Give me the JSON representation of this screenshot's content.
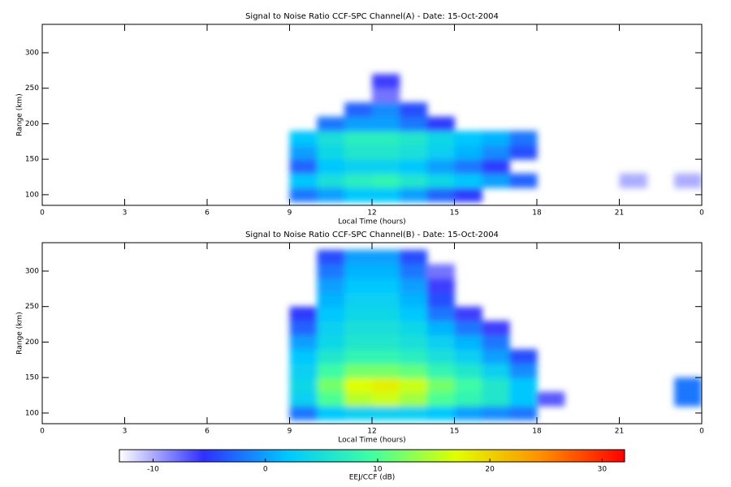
{
  "chart_data": [
    {
      "type": "heatmap",
      "title": "Signal to Noise Ratio CCF-SPC Channel(A) - Date: 15-Oct-2004",
      "xlabel": "Local Time (hours)",
      "ylabel": "Range (km)",
      "xlim": [
        0,
        24
      ],
      "xticks": [
        0,
        3,
        6,
        9,
        12,
        15,
        18,
        21,
        {
          "value": 24,
          "label": "0"
        }
      ],
      "ylim": [
        85,
        340
      ],
      "yticks": [
        100,
        150,
        200,
        250,
        300
      ],
      "x_edges": [
        0,
        1,
        2,
        3,
        4,
        5,
        6,
        7,
        8,
        9,
        10,
        11,
        12,
        13,
        14,
        15,
        16,
        17,
        18,
        19,
        20,
        21,
        22,
        23,
        24
      ],
      "y_edges": [
        90,
        110,
        130,
        150,
        170,
        190,
        210,
        230,
        250,
        270,
        290,
        310,
        330
      ],
      "z": [
        [
          null,
          null,
          null,
          null,
          null,
          null,
          null,
          null,
          null,
          -2,
          0,
          2,
          2,
          0,
          -3,
          -5,
          null,
          null,
          null,
          null,
          null,
          null,
          null,
          null
        ],
        [
          null,
          null,
          null,
          null,
          null,
          null,
          null,
          null,
          null,
          2,
          5,
          7,
          8,
          6,
          4,
          2,
          0,
          -3,
          null,
          null,
          null,
          -10,
          null,
          -10
        ],
        [
          null,
          null,
          null,
          null,
          null,
          null,
          null,
          null,
          null,
          -3,
          2,
          3,
          3,
          2,
          0,
          -2,
          -5,
          null,
          null,
          null,
          null,
          null,
          null,
          null
        ],
        [
          null,
          null,
          null,
          null,
          null,
          null,
          null,
          null,
          null,
          0,
          4,
          6,
          6,
          5,
          3,
          1,
          -1,
          -4,
          null,
          null,
          null,
          null,
          null,
          null
        ],
        [
          null,
          null,
          null,
          null,
          null,
          null,
          null,
          null,
          null,
          2,
          5,
          7,
          7,
          6,
          4,
          2,
          1,
          -2,
          null,
          null,
          null,
          null,
          null,
          null
        ],
        [
          null,
          null,
          null,
          null,
          null,
          null,
          null,
          null,
          null,
          null,
          -2,
          0,
          0,
          -2,
          -5,
          null,
          null,
          null,
          null,
          null,
          null,
          null,
          null,
          null
        ],
        [
          null,
          null,
          null,
          null,
          null,
          null,
          null,
          null,
          null,
          null,
          null,
          -3,
          -1,
          -4,
          null,
          null,
          null,
          null,
          null,
          null,
          null,
          null,
          null,
          null
        ],
        [
          null,
          null,
          null,
          null,
          null,
          null,
          null,
          null,
          null,
          null,
          null,
          null,
          -8,
          null,
          null,
          null,
          null,
          null,
          null,
          null,
          null,
          null,
          null,
          null
        ],
        [
          null,
          null,
          null,
          null,
          null,
          null,
          null,
          null,
          null,
          null,
          null,
          null,
          -6,
          null,
          null,
          null,
          null,
          null,
          null,
          null,
          null,
          null,
          null,
          null
        ],
        [
          null,
          null,
          null,
          null,
          null,
          null,
          null,
          null,
          null,
          null,
          null,
          null,
          null,
          null,
          null,
          null,
          null,
          null,
          null,
          null,
          null,
          null,
          null,
          null
        ],
        [
          null,
          null,
          null,
          null,
          null,
          null,
          null,
          null,
          null,
          null,
          null,
          null,
          null,
          null,
          null,
          null,
          null,
          null,
          null,
          null,
          null,
          null,
          null,
          null
        ],
        [
          null,
          null,
          null,
          null,
          null,
          null,
          null,
          null,
          null,
          null,
          null,
          null,
          null,
          null,
          null,
          null,
          null,
          null,
          null,
          null,
          null,
          null,
          null,
          null
        ]
      ]
    },
    {
      "type": "heatmap",
      "title": "Signal to Noise Ratio CCF-SPC Channel(B) - Date: 15-Oct-2004",
      "xlabel": "Local Time (hours)",
      "ylabel": "Range (km)",
      "xlim": [
        0,
        24
      ],
      "xticks": [
        0,
        3,
        6,
        9,
        12,
        15,
        18,
        21,
        {
          "value": 24,
          "label": "0"
        }
      ],
      "ylim": [
        85,
        340
      ],
      "yticks": [
        100,
        150,
        200,
        250,
        300
      ],
      "x_edges": [
        0,
        1,
        2,
        3,
        4,
        5,
        6,
        7,
        8,
        9,
        10,
        11,
        12,
        13,
        14,
        15,
        16,
        17,
        18,
        19,
        20,
        21,
        22,
        23,
        24
      ],
      "y_edges": [
        90,
        110,
        130,
        150,
        170,
        190,
        210,
        230,
        250,
        270,
        290,
        310,
        330
      ],
      "z": [
        [
          null,
          null,
          null,
          null,
          null,
          null,
          null,
          null,
          null,
          -2,
          2,
          3,
          3,
          3,
          2,
          0,
          -1,
          -2,
          null,
          null,
          null,
          null,
          null,
          null
        ],
        [
          null,
          null,
          null,
          null,
          null,
          null,
          null,
          null,
          null,
          3,
          10,
          15,
          16,
          14,
          10,
          8,
          6,
          2,
          -7,
          null,
          null,
          null,
          null,
          -2
        ],
        [
          null,
          null,
          null,
          null,
          null,
          null,
          null,
          null,
          null,
          4,
          12,
          17,
          18,
          16,
          12,
          9,
          6,
          2,
          null,
          null,
          null,
          null,
          null,
          -2
        ],
        [
          null,
          null,
          null,
          null,
          null,
          null,
          null,
          null,
          null,
          3,
          9,
          12,
          12,
          11,
          8,
          6,
          3,
          -1,
          null,
          null,
          null,
          null,
          null,
          null
        ],
        [
          null,
          null,
          null,
          null,
          null,
          null,
          null,
          null,
          null,
          2,
          6,
          8,
          8,
          7,
          5,
          3,
          0,
          -4,
          null,
          null,
          null,
          null,
          null,
          null
        ],
        [
          null,
          null,
          null,
          null,
          null,
          null,
          null,
          null,
          null,
          0,
          4,
          6,
          6,
          5,
          3,
          1,
          -2,
          null,
          null,
          null,
          null,
          null,
          null,
          null
        ],
        [
          null,
          null,
          null,
          null,
          null,
          null,
          null,
          null,
          null,
          -3,
          3,
          5,
          5,
          4,
          1,
          -2,
          -6,
          null,
          null,
          null,
          null,
          null,
          null,
          null
        ],
        [
          null,
          null,
          null,
          null,
          null,
          null,
          null,
          null,
          null,
          -5,
          2,
          4,
          4,
          2,
          -2,
          -6,
          null,
          null,
          null,
          null,
          null,
          null,
          null,
          null
        ],
        [
          null,
          null,
          null,
          null,
          null,
          null,
          null,
          null,
          null,
          null,
          1,
          3,
          3,
          1,
          -4,
          null,
          null,
          null,
          null,
          null,
          null,
          null,
          null,
          null
        ],
        [
          null,
          null,
          null,
          null,
          null,
          null,
          null,
          null,
          null,
          null,
          0,
          2,
          2,
          0,
          -6,
          null,
          null,
          null,
          null,
          null,
          null,
          null,
          null,
          null
        ],
        [
          null,
          null,
          null,
          null,
          null,
          null,
          null,
          null,
          null,
          null,
          -2,
          1,
          1,
          -2,
          -8,
          null,
          null,
          null,
          null,
          null,
          null,
          null,
          null,
          null
        ],
        [
          null,
          null,
          null,
          null,
          null,
          null,
          null,
          null,
          null,
          null,
          -4,
          0,
          0,
          -4,
          null,
          null,
          null,
          null,
          null,
          null,
          null,
          null,
          null,
          null
        ]
      ]
    }
  ],
  "colorbar": {
    "label": "EEJ/CCF (dB)",
    "clim": [
      -13,
      32
    ],
    "ticks": [
      -10,
      0,
      10,
      20,
      30
    ],
    "colormap": [
      "#ffffff",
      "#3030ff",
      "#00c8ff",
      "#40ffa0",
      "#e0ff00",
      "#ff9000",
      "#ff0000"
    ]
  }
}
